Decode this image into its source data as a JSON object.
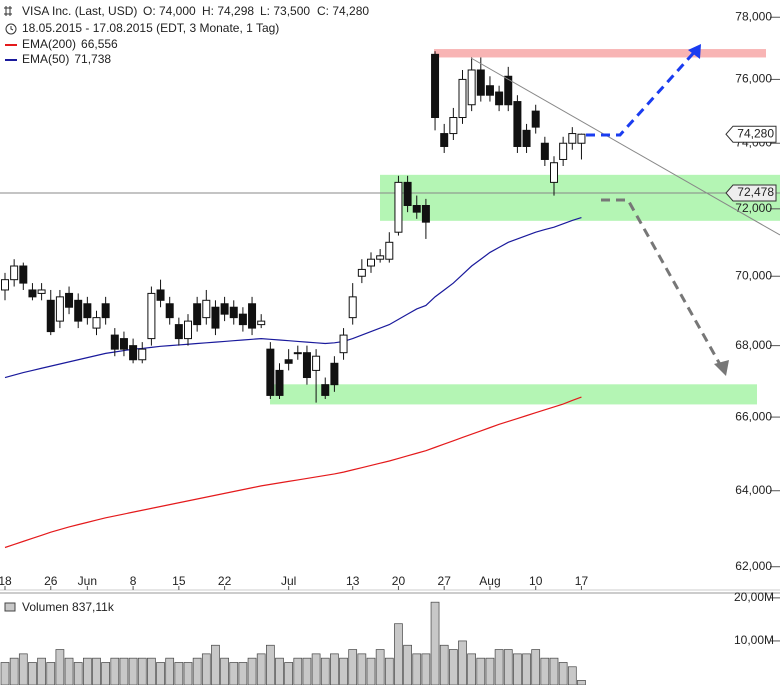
{
  "chart_data": {
    "type": "candlestick",
    "title": "VISA Inc. (Last, USD)",
    "ohlc_text": [
      "O: 74,000",
      "H: 74,298",
      "L: 73,500",
      "C: 74,280"
    ],
    "subtitle": "18.05.2015 - 17.08.2015 (EDT, 3 Monate, 1 Tag)",
    "categories": [
      "18",
      null,
      null,
      null,
      null,
      "26",
      null,
      null,
      null,
      "Jun",
      null,
      null,
      null,
      null,
      "8",
      null,
      null,
      null,
      null,
      "15",
      null,
      null,
      null,
      null,
      "22",
      null,
      null,
      null,
      null,
      null,
      null,
      "Jul",
      null,
      null,
      null,
      null,
      null,
      null,
      "13",
      null,
      null,
      null,
      null,
      "20",
      null,
      null,
      null,
      null,
      "27",
      null,
      null,
      null,
      null,
      "Aug",
      null,
      null,
      null,
      null,
      "10",
      null,
      null,
      null,
      null,
      "17"
    ],
    "open": [
      69.6,
      69.9,
      70.3,
      69.6,
      69.5,
      69.3,
      68.7,
      69.5,
      69.3,
      69.2,
      68.5,
      69.2,
      68.3,
      68.2,
      68.0,
      67.6,
      68.2,
      69.6,
      69.2,
      68.6,
      68.2,
      69.2,
      68.8,
      69.1,
      69.2,
      69.1,
      68.9,
      69.2,
      68.6,
      67.9,
      67.3,
      67.6,
      67.8,
      67.8,
      67.3,
      66.9,
      67.5,
      67.8,
      68.8,
      70.0,
      70.3,
      70.5,
      70.5,
      71.3,
      72.8,
      72.1,
      72.1,
      76.8,
      74.3,
      74.3,
      74.8,
      75.2,
      76.3,
      75.8,
      75.6,
      76.1,
      75.3,
      74.4,
      75.0,
      74.0,
      72.8,
      73.5,
      74.0,
      74.0
    ],
    "high": [
      70.1,
      70.5,
      70.4,
      69.8,
      69.8,
      69.6,
      69.6,
      69.7,
      69.5,
      69.4,
      69.0,
      69.4,
      68.5,
      68.4,
      68.2,
      68.1,
      69.7,
      69.9,
      69.4,
      68.8,
      68.9,
      69.4,
      69.6,
      69.3,
      69.4,
      69.3,
      69.1,
      69.4,
      68.9,
      68.1,
      67.5,
      67.9,
      68.0,
      68.0,
      67.9,
      67.1,
      67.7,
      68.5,
      69.8,
      70.5,
      70.7,
      70.8,
      71.3,
      73.0,
      73.0,
      72.4,
      72.3,
      76.9,
      74.6,
      75.1,
      76.3,
      76.7,
      76.7,
      76.1,
      75.8,
      76.4,
      75.5,
      74.6,
      75.2,
      74.2,
      73.6,
      74.2,
      74.5,
      74.298
    ],
    "low": [
      69.3,
      69.7,
      69.6,
      69.3,
      69.3,
      68.3,
      68.5,
      68.9,
      68.5,
      68.6,
      68.3,
      68.6,
      67.7,
      67.7,
      67.5,
      67.5,
      68.0,
      69.1,
      68.6,
      68.0,
      68.0,
      68.4,
      68.6,
      68.3,
      68.7,
      68.6,
      68.4,
      68.3,
      68.5,
      66.5,
      66.5,
      67.3,
      67.6,
      66.9,
      66.4,
      66.5,
      66.7,
      67.6,
      68.6,
      69.8,
      70.1,
      70.4,
      70.4,
      71.2,
      71.9,
      71.7,
      71.1,
      74.4,
      73.7,
      74.1,
      74.6,
      75.0,
      75.3,
      75.3,
      75.0,
      75.0,
      73.7,
      73.7,
      74.3,
      73.3,
      72.4,
      73.3,
      73.8,
      73.5
    ],
    "close": [
      69.9,
      70.3,
      69.8,
      69.4,
      69.6,
      68.4,
      69.4,
      69.1,
      68.7,
      68.8,
      68.8,
      68.8,
      67.9,
      67.9,
      67.6,
      67.9,
      69.5,
      69.3,
      68.8,
      68.2,
      68.7,
      68.6,
      69.3,
      68.5,
      68.9,
      68.8,
      68.6,
      68.5,
      68.7,
      66.6,
      66.6,
      67.5,
      67.8,
      67.1,
      67.7,
      66.6,
      66.9,
      68.3,
      69.4,
      70.2,
      70.5,
      70.6,
      71.0,
      72.8,
      72.1,
      71.9,
      71.6,
      74.8,
      73.9,
      74.8,
      76.0,
      76.3,
      75.5,
      75.5,
      75.2,
      75.2,
      73.9,
      73.9,
      74.5,
      73.5,
      73.4,
      74.0,
      74.3,
      74.28
    ],
    "series": [
      {
        "name": "EMA(200)",
        "value_label": "66,556",
        "color": "#e41a1c",
        "values": [
          62.5,
          62.58,
          62.66,
          62.74,
          62.82,
          62.9,
          62.97,
          63.04,
          63.1,
          63.16,
          63.22,
          63.28,
          63.33,
          63.38,
          63.43,
          63.48,
          63.53,
          63.58,
          63.63,
          63.68,
          63.73,
          63.78,
          63.83,
          63.88,
          63.93,
          63.98,
          64.03,
          64.08,
          64.13,
          64.17,
          64.21,
          64.25,
          64.29,
          64.33,
          64.37,
          64.41,
          64.45,
          64.5,
          64.56,
          64.62,
          64.68,
          64.74,
          64.8,
          64.87,
          64.94,
          65.01,
          65.08,
          65.17,
          65.26,
          65.35,
          65.44,
          65.53,
          65.62,
          65.71,
          65.8,
          65.88,
          65.96,
          66.04,
          66.12,
          66.2,
          66.28,
          66.36,
          66.46,
          66.556
        ]
      },
      {
        "name": "EMA(50)",
        "value_label": "71,738",
        "color": "#1a1a9c",
        "values": [
          67.1,
          67.17,
          67.24,
          67.3,
          67.36,
          67.42,
          67.48,
          67.54,
          67.6,
          67.66,
          67.72,
          67.78,
          67.82,
          67.86,
          67.9,
          67.92,
          67.95,
          67.98,
          68.0,
          68.02,
          68.04,
          68.06,
          68.08,
          68.1,
          68.12,
          68.14,
          68.16,
          68.18,
          68.2,
          68.18,
          68.16,
          68.14,
          68.12,
          68.1,
          68.08,
          68.06,
          68.08,
          68.12,
          68.2,
          68.3,
          68.4,
          68.5,
          68.6,
          68.75,
          68.9,
          69.05,
          69.15,
          69.4,
          69.6,
          69.8,
          70.05,
          70.3,
          70.5,
          70.7,
          70.85,
          71.0,
          71.1,
          71.2,
          71.3,
          71.38,
          71.45,
          71.55,
          71.65,
          71.738
        ]
      }
    ],
    "log": true,
    "ylim": [
      61.4,
      78.4
    ],
    "yticks": [
      {
        "value": 62,
        "label": "62,000"
      },
      {
        "value": 64,
        "label": "64,000"
      },
      {
        "value": 66,
        "label": "66,000"
      },
      {
        "value": 68,
        "label": "68,000"
      },
      {
        "value": 70,
        "label": "70,000"
      },
      {
        "value": 72,
        "label": "72,000"
      },
      {
        "value": 74,
        "label": "74,000"
      },
      {
        "value": 76,
        "label": "76,000"
      },
      {
        "value": 78,
        "label": "78,000"
      }
    ],
    "zones": [
      {
        "range": [
          76.7,
          76.97
        ],
        "color": "#f8b4b4"
      },
      {
        "range": [
          71.64,
          73.03
        ],
        "color": "#b4f5b4"
      },
      {
        "range": [
          66.35,
          66.91
        ],
        "color": "#b4f5b4"
      }
    ],
    "price_labels": [
      {
        "value": 74.28,
        "label": "74,280"
      },
      {
        "value": 72.478,
        "label": "72,478"
      }
    ],
    "volume_label": "Volumen 837,11k",
    "volume": [
      5,
      6,
      7,
      5,
      6,
      5,
      8,
      6,
      5,
      6,
      6,
      5,
      6,
      6,
      6,
      6,
      6,
      5,
      6,
      5,
      5,
      6,
      7,
      9,
      6,
      5,
      5,
      6,
      7,
      9,
      6,
      5,
      6,
      6,
      7,
      6,
      7,
      6,
      8,
      7,
      6,
      8,
      6,
      14,
      9,
      7,
      7,
      19,
      9,
      8,
      10,
      7,
      6,
      6,
      8,
      8,
      7,
      7,
      8,
      6,
      6,
      5,
      4,
      0.83711
    ],
    "vlim": [
      0,
      20.9
    ],
    "vticks": [
      {
        "value": 10,
        "label": "10,00M"
      },
      {
        "value": 20,
        "label": "20,00M"
      }
    ]
  }
}
